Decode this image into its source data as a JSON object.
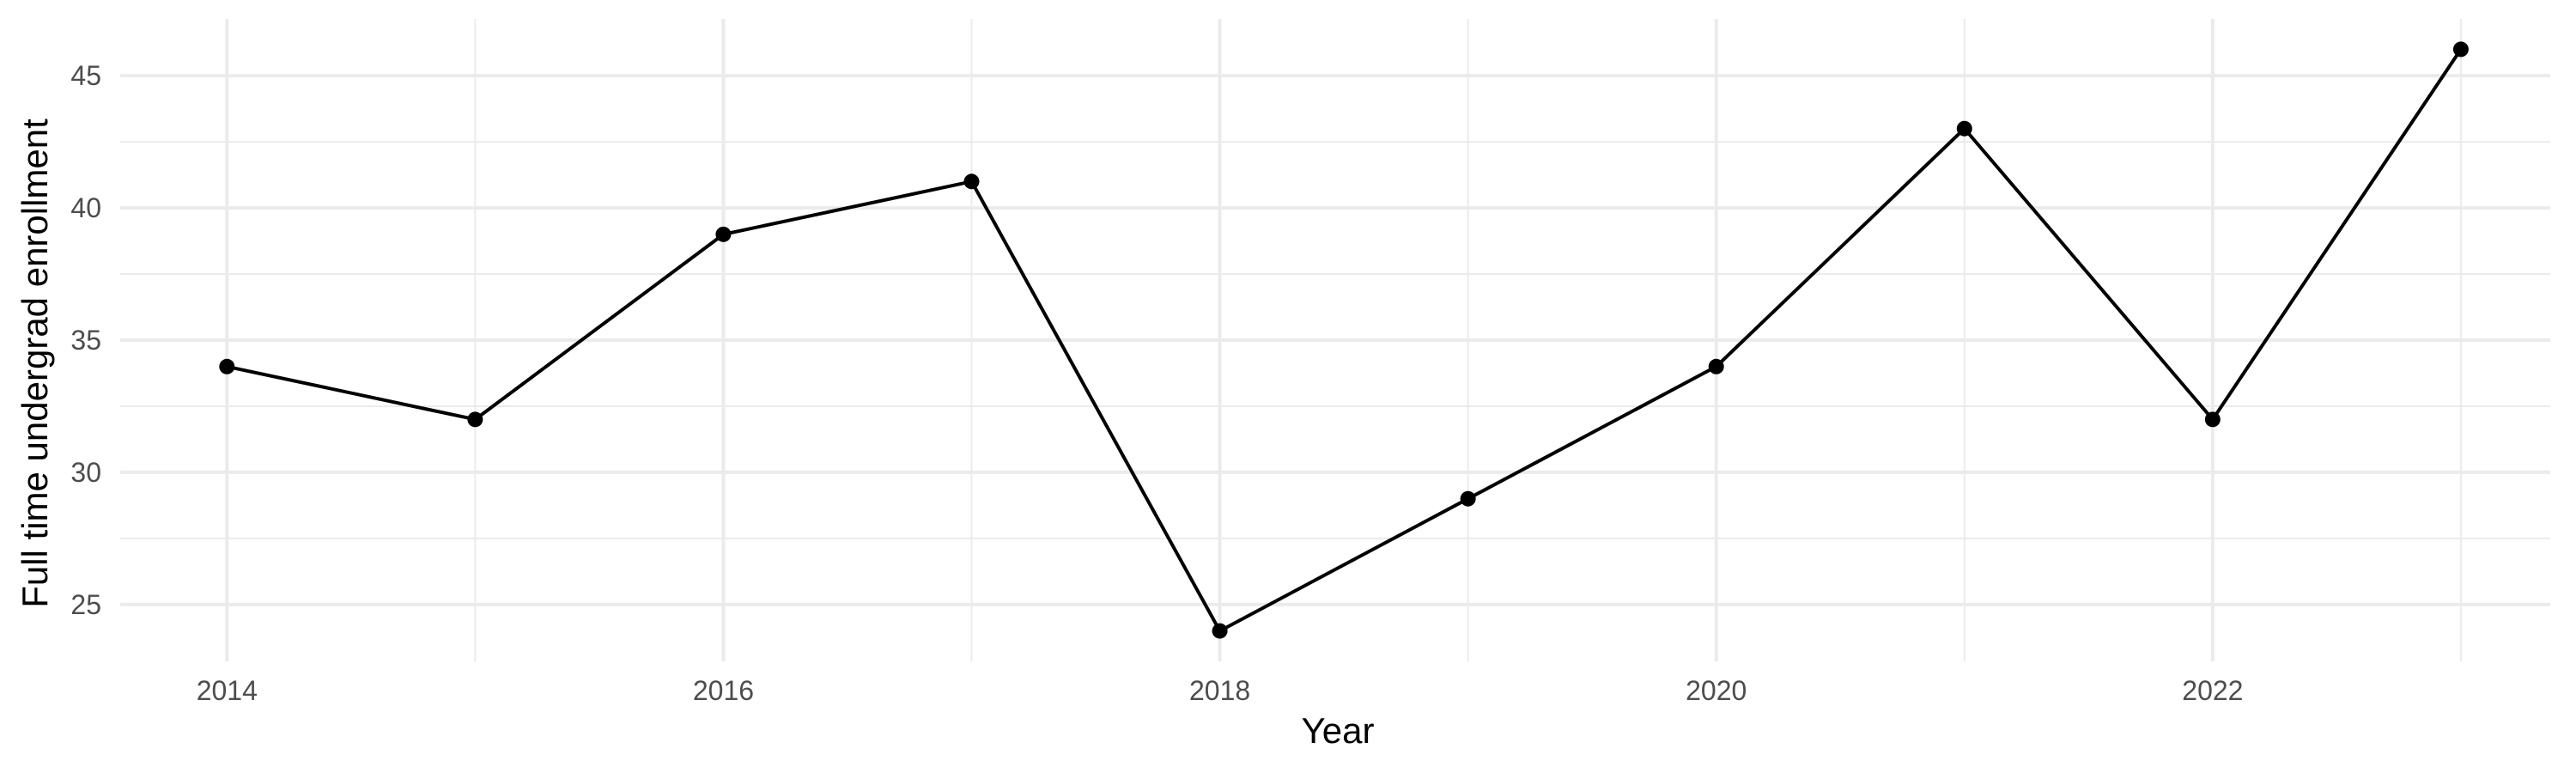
{
  "chart_data": {
    "type": "line",
    "title": "",
    "xlabel": "Year",
    "ylabel": "Full time undergrad enrollment",
    "x": [
      2014,
      2015,
      2016,
      2017,
      2018,
      2019,
      2020,
      2021,
      2022,
      2023
    ],
    "series": [
      {
        "values": [
          34,
          32,
          39,
          41,
          24,
          29,
          34,
          43,
          32,
          46
        ]
      }
    ],
    "xlim": [
      2013.57,
      2023.36
    ],
    "ylim": [
      22.85,
      47.15
    ],
    "x_ticks": [
      2014,
      2016,
      2018,
      2020,
      2022
    ],
    "y_ticks": [
      25,
      30,
      35,
      40,
      45
    ],
    "grid": true,
    "markers": true,
    "colors": {
      "line": "#000000",
      "grid": "#ebebeb",
      "background": "#ffffff"
    }
  }
}
